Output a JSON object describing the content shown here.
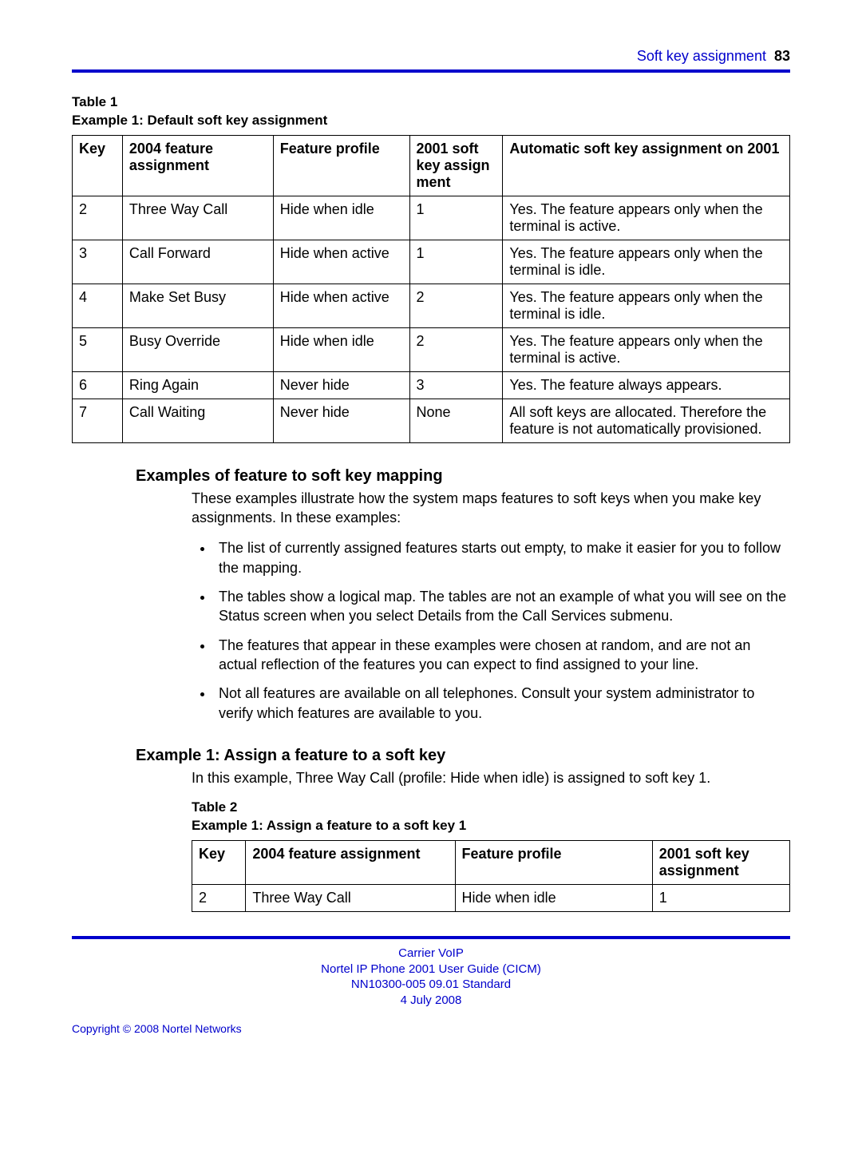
{
  "header": {
    "section_label": "Soft key assignment",
    "page_number": "83"
  },
  "colors": {
    "accent": "#0000cc",
    "text": "#000000",
    "rule": "#0000cc"
  },
  "table1": {
    "caption_line1": "Table 1",
    "caption_line2": "Example 1: Default soft key assignment",
    "headers": {
      "c1": "Key",
      "c2": "2004 feature assignment",
      "c3": "Feature profile",
      "c4": "2001 soft key assign ment",
      "c5": "Automatic soft key assignment on 2001"
    },
    "col_widths_pct": [
      7,
      21,
      19,
      13,
      40
    ],
    "rows": [
      {
        "c1": "2",
        "c2": "Three Way Call",
        "c3": "Hide when idle",
        "c4": "1",
        "c5": "Yes. The feature appears only when the terminal is active."
      },
      {
        "c1": "3",
        "c2": "Call Forward",
        "c3": "Hide when active",
        "c4": "1",
        "c5": "Yes. The feature appears only when the terminal is idle."
      },
      {
        "c1": "4",
        "c2": "Make Set Busy",
        "c3": "Hide when active",
        "c4": "2",
        "c5": "Yes. The feature appears only when the terminal is idle."
      },
      {
        "c1": "5",
        "c2": "Busy Override",
        "c3": "Hide when idle",
        "c4": "2",
        "c5": "Yes. The feature appears only when the terminal is active."
      },
      {
        "c1": "6",
        "c2": "Ring Again",
        "c3": "Never hide",
        "c4": "3",
        "c5": "Yes. The feature always appears."
      },
      {
        "c1": "7",
        "c2": "Call Waiting",
        "c3": "Never hide",
        "c4": "None",
        "c5": "All soft keys are allocated. Therefore the feature is not automatically provisioned."
      }
    ]
  },
  "section_examples": {
    "heading": "Examples of feature to soft key mapping",
    "intro": "These examples illustrate how the system maps features to soft keys when you make key assignments. In these examples:",
    "bullets": [
      "The list of currently assigned features starts out empty, to make it easier for you to follow the mapping.",
      "The tables show a logical map. The tables are not an example of what you will see on the Status screen when you select Details from the Call Services submenu.",
      "The features that appear in these examples were chosen at random, and are not an actual reflection of the features you can expect to find assigned to your line.",
      "Not all features are available on all telephones. Consult your system administrator to verify which features are available to you."
    ]
  },
  "section_example1": {
    "heading": "Example 1: Assign a feature to a soft key",
    "body": "In this example, Three Way Call (profile: Hide when idle) is assigned to soft key 1."
  },
  "table2": {
    "caption_line1": "Table 2",
    "caption_line2": "Example 1: Assign a feature to a soft key 1",
    "headers": {
      "c1": "Key",
      "c2": "2004 feature assignment",
      "c3": "Feature profile",
      "c4": "2001 soft key assignment"
    },
    "col_widths_pct": [
      9,
      35,
      33,
      23
    ],
    "rows": [
      {
        "c1": "2",
        "c2": "Three Way Call",
        "c3": "Hide when idle",
        "c4": "1"
      }
    ]
  },
  "footer": {
    "line1": "Carrier VoIP",
    "line2": "Nortel IP Phone 2001 User Guide (CICM)",
    "line3": "NN10300-005   09.01   Standard",
    "line4": "4 July 2008"
  },
  "copyright": "Copyright © 2008 Nortel Networks"
}
